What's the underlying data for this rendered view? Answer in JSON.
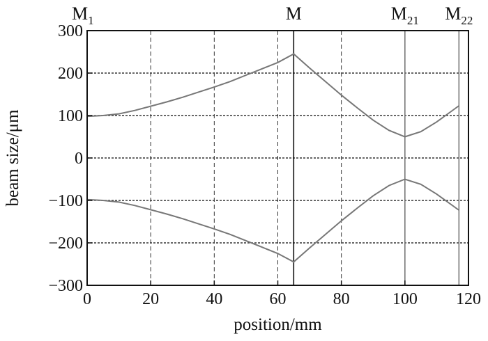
{
  "chart_data": {
    "type": "line",
    "xlabel": "position/mm",
    "ylabel": "beam size/μm",
    "xlim": [
      0,
      120
    ],
    "ylim": [
      -300,
      300
    ],
    "x_ticks": [
      0,
      20,
      40,
      60,
      80,
      100,
      120
    ],
    "y_ticks": [
      300,
      200,
      100,
      0,
      -100,
      -200,
      -300
    ],
    "y_tick_labels": [
      "300",
      "200",
      "100",
      "0",
      "−100",
      "−200",
      "−300"
    ],
    "grid": "dashed",
    "mirrors": [
      {
        "main": "M",
        "sub": "1",
        "x": 0
      },
      {
        "main": "M",
        "sub": "",
        "x": 65
      },
      {
        "main": "M",
        "sub": "21",
        "x": 100
      },
      {
        "main": "M",
        "sub": "22",
        "x": 117
      }
    ],
    "series": [
      {
        "x": [
          0,
          5,
          10,
          15,
          20,
          25,
          30,
          35,
          40,
          45,
          50,
          55,
          60,
          65,
          70,
          75,
          80,
          85,
          90,
          95,
          100,
          105,
          110,
          117
        ],
        "values": [
          98,
          100,
          104,
          112,
          122,
          132,
          143,
          155,
          167,
          180,
          195,
          210,
          225,
          245,
          212,
          180,
          148,
          118,
          89,
          65,
          50,
          62,
          85,
          123
        ]
      },
      {
        "x": [
          0,
          5,
          10,
          15,
          20,
          25,
          30,
          35,
          40,
          45,
          50,
          55,
          60,
          65,
          70,
          75,
          80,
          85,
          90,
          95,
          100,
          105,
          110,
          117
        ],
        "values": [
          -98,
          -100,
          -104,
          -112,
          -122,
          -132,
          -143,
          -155,
          -167,
          -180,
          -195,
          -210,
          -225,
          -245,
          -212,
          -180,
          -148,
          -118,
          -89,
          -65,
          -50,
          -62,
          -85,
          -123
        ]
      }
    ],
    "colors": {
      "line": "#777777",
      "grid": "#333333",
      "axis": "#111111",
      "mirror": "#777777"
    }
  }
}
